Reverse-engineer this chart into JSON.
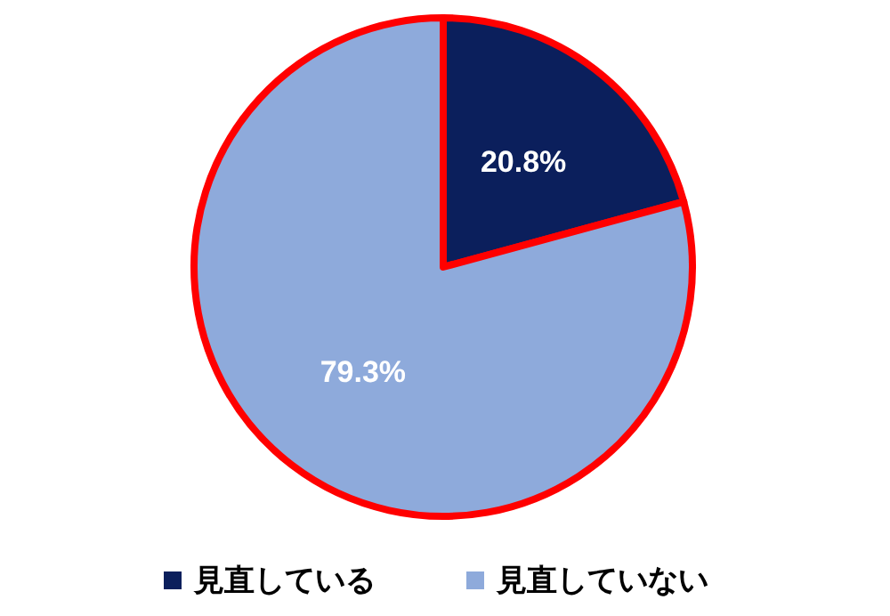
{
  "chart_data": {
    "type": "pie",
    "categories": [
      "見直している",
      "見直していない"
    ],
    "values": [
      20.8,
      79.3
    ],
    "colors": [
      "#0b1f5c",
      "#8eaadb"
    ],
    "value_labels": [
      "20.8%",
      "79.3%"
    ],
    "legend": "bottom"
  }
}
